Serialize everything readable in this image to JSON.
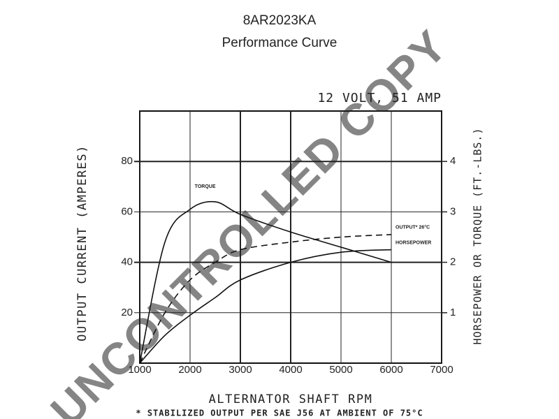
{
  "chart_data": {
    "type": "line",
    "title": "8AR2023KA",
    "subtitle": "Performance Curve",
    "annotation": "12 VOLT, 51 AMP",
    "footnote": "* STABILIZED OUTPUT PER SAE J56 AT AMBIENT OF 75°C",
    "watermark": "UNCONTROLLED COPY",
    "x_label": "ALTERNATOR SHAFT RPM",
    "y_label": "OUTPUT CURRENT (AMPERES)",
    "y2_label": "HORSEPOWER OR TORQUE (FT.-LBS.)",
    "x": [
      1000,
      1500,
      2000,
      2500,
      3000,
      4000,
      5000,
      6000
    ],
    "xlim": [
      1000,
      7000
    ],
    "xticks": [
      1000,
      2000,
      3000,
      4000,
      5000,
      6000,
      7000
    ],
    "ylim": [
      0,
      100
    ],
    "yticks": [
      20,
      40,
      60,
      80
    ],
    "y2lim": [
      0,
      5
    ],
    "y2ticks": [
      1,
      2,
      3,
      4
    ],
    "grid": true,
    "series": [
      {
        "name": "TORQUE",
        "color": "#111111",
        "axis": "y2",
        "dashed": false,
        "values": [
          0,
          2.4,
          3.05,
          3.2,
          2.95,
          2.6,
          2.3,
          2.0
        ]
      },
      {
        "name": "OUTPUT* 26°C",
        "color": "#111111",
        "dashed": true,
        "values": [
          0,
          20,
          33,
          40,
          45,
          48,
          50,
          51
        ]
      },
      {
        "name": "HORSEPOWER",
        "color": "#111111",
        "axis": "y2",
        "dashed": false,
        "values": [
          0,
          0.55,
          0.95,
          1.3,
          1.65,
          2.0,
          2.2,
          2.25
        ]
      }
    ]
  }
}
